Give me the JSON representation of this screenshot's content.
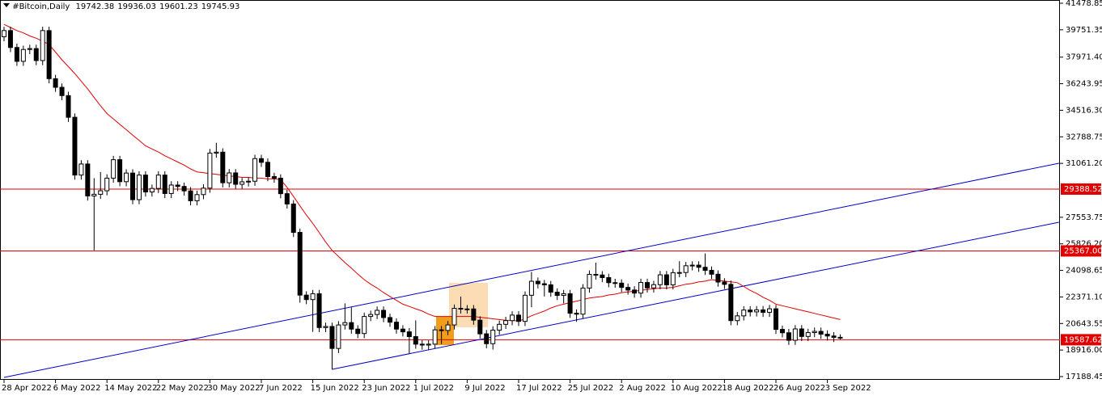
{
  "chart_data": {
    "type": "candlestick",
    "title": "#Bitcoin,Daily",
    "header_values": [
      19742.38,
      19936.03,
      19601.23,
      19745.93
    ],
    "ylim": [
      17188.45,
      41478.85
    ],
    "yticks": [
      41478.85,
      39751.35,
      {
        "value": 37971.4,
        "label": "37971.40"
      },
      36243.95,
      {
        "value": 34516.3,
        "label": "34516.30"
      },
      32788.75,
      {
        "value": 31061.2,
        "label": "31061.20"
      },
      27553.75,
      {
        "value": 25826.2,
        "label": "25826.20"
      },
      24098.65,
      {
        "value": 22371.1,
        "label": "22371.10"
      },
      20643.55,
      {
        "value": 18916,
        "label": "18916.00"
      },
      17188.45
    ],
    "xticks": [
      {
        "value": "2022-04-28",
        "label": "28 Apr 2022"
      },
      {
        "value": "2022-05-06",
        "label": "6 May 2022"
      },
      {
        "value": "2022-05-14",
        "label": "14 May 2022"
      },
      {
        "value": "2022-05-22",
        "label": "22 May 2022"
      },
      {
        "value": "2022-05-30",
        "label": "30 May 2022"
      },
      {
        "value": "2022-06-07",
        "label": "7 Jun 2022"
      },
      {
        "value": "2022-06-15",
        "label": "15 Jun 2022"
      },
      {
        "value": "2022-06-23",
        "label": "23 Jun 2022"
      },
      {
        "value": "2022-07-01",
        "label": "1 Jul 2022"
      },
      {
        "value": "2022-07-09",
        "label": "9 Jul 2022"
      },
      {
        "value": "2022-07-17",
        "label": "17 Jul 2022"
      },
      {
        "value": "2022-07-25",
        "label": "25 Jul 2022"
      },
      {
        "value": "2022-08-02",
        "label": "2 Aug 2022"
      },
      {
        "value": "2022-08-10",
        "label": "10 Aug 2022"
      },
      {
        "value": "2022-08-18",
        "label": "18 Aug 2022"
      },
      {
        "value": "2022-08-26",
        "label": "26 Aug 2022"
      },
      {
        "value": "2022-09-03",
        "label": "3 Sep 2022"
      }
    ],
    "x": [
      "2022-04-28",
      "2022-04-29",
      "2022-04-30",
      "2022-05-01",
      "2022-05-02",
      "2022-05-03",
      "2022-05-04",
      "2022-05-05",
      "2022-05-06",
      "2022-05-07",
      "2022-05-08",
      "2022-05-09",
      "2022-05-10",
      "2022-05-11",
      "2022-05-12",
      "2022-05-13",
      "2022-05-14",
      "2022-05-15",
      "2022-05-16",
      "2022-05-17",
      "2022-05-18",
      "2022-05-19",
      "2022-05-20",
      "2022-05-21",
      "2022-05-22",
      "2022-05-23",
      "2022-05-24",
      "2022-05-25",
      "2022-05-26",
      "2022-05-27",
      "2022-05-28",
      "2022-05-29",
      "2022-05-30",
      "2022-05-31",
      "2022-06-01",
      "2022-06-02",
      "2022-06-03",
      "2022-06-04",
      "2022-06-05",
      "2022-06-06",
      "2022-06-07",
      "2022-06-08",
      "2022-06-09",
      "2022-06-10",
      "2022-06-11",
      "2022-06-12",
      "2022-06-13",
      "2022-06-14",
      "2022-06-15",
      "2022-06-16",
      "2022-06-17",
      "2022-06-18",
      "2022-06-19",
      "2022-06-20",
      "2022-06-21",
      "2022-06-22",
      "2022-06-23",
      "2022-06-24",
      "2022-06-25",
      "2022-06-26",
      "2022-06-27",
      "2022-06-28",
      "2022-06-29",
      "2022-06-30",
      "2022-07-01",
      "2022-07-02",
      "2022-07-03",
      "2022-07-04",
      "2022-07-05",
      "2022-07-06",
      "2022-07-07",
      "2022-07-08",
      "2022-07-09",
      "2022-07-10",
      "2022-07-11",
      "2022-07-12",
      "2022-07-13",
      "2022-07-14",
      "2022-07-15",
      "2022-07-16",
      "2022-07-17",
      "2022-07-18",
      "2022-07-19",
      "2022-07-20",
      "2022-07-21",
      "2022-07-22",
      "2022-07-23",
      "2022-07-24",
      "2022-07-25",
      "2022-07-26",
      "2022-07-27",
      "2022-07-28",
      "2022-07-29",
      "2022-07-30",
      "2022-07-31",
      "2022-08-01",
      "2022-08-02",
      "2022-08-03",
      "2022-08-04",
      "2022-08-05",
      "2022-08-06",
      "2022-08-07",
      "2022-08-08",
      "2022-08-09",
      "2022-08-10",
      "2022-08-11",
      "2022-08-12",
      "2022-08-13",
      "2022-08-14",
      "2022-08-15",
      "2022-08-16",
      "2022-08-17",
      "2022-08-18",
      "2022-08-19",
      "2022-08-20",
      "2022-08-21",
      "2022-08-22",
      "2022-08-23",
      "2022-08-24",
      "2022-08-25",
      "2022-08-26",
      "2022-08-27",
      "2022-08-28",
      "2022-08-29",
      "2022-08-30",
      "2022-08-31",
      "2022-09-01",
      "2022-09-02",
      "2022-09-03",
      "2022-09-04",
      "2022-09-05"
    ],
    "open": [
      39300,
      39700,
      38600,
      37700,
      38470,
      38530,
      37750,
      39700,
      36570,
      36010,
      35470,
      34060,
      30300,
      31020,
      28940,
      29050,
      29280,
      30100,
      31300,
      29870,
      30430,
      28700,
      30300,
      29200,
      29430,
      30300,
      29100,
      29650,
      29560,
      29270,
      28630,
      29030,
      29450,
      31730,
      31790,
      29800,
      30440,
      29700,
      29860,
      29900,
      31370,
      31130,
      30200,
      30100,
      29090,
      28420,
      26570,
      22490,
      22200,
      22580,
      20380,
      20450,
      19020,
      20550,
      20700,
      20280,
      19990,
      21100,
      21230,
      21500,
      21030,
      20730,
      20280,
      20100,
      19790,
      19300,
      19240,
      19300,
      20230,
      20190,
      20550,
      21630,
      21590,
      21590,
      20860,
      19970,
      19330,
      20210,
      20590,
      20830,
      21190,
      20780,
      22480,
      23390,
      23230,
      23160,
      22680,
      22470,
      22580,
      21310,
      21250,
      22950,
      23840,
      23800,
      23630,
      23300,
      23270,
      22990,
      22820,
      22620,
      23310,
      22960,
      23170,
      23810,
      23160,
      23950,
      23960,
      24400,
      24440,
      24300,
      24100,
      23850,
      23340,
      23190,
      20830,
      21140,
      21520,
      21400,
      21530,
      21370,
      21600,
      20260,
      20040,
      19550,
      20290,
      19800,
      20050,
      20130,
      19950,
      19830,
      19742.38
    ],
    "high": [
      39950,
      39950,
      38850,
      38720,
      38780,
      38780,
      39950,
      39950,
      36820,
      36260,
      35720,
      34310,
      31270,
      31270,
      30100,
      30500,
      30350,
      31550,
      31550,
      30680,
      30680,
      30550,
      30550,
      29680,
      30550,
      30550,
      29900,
      29900,
      29810,
      29520,
      29280,
      29700,
      32000,
      32400,
      32040,
      30690,
      30690,
      30110,
      30150,
      31620,
      31620,
      31380,
      30450,
      30350,
      29340,
      28670,
      26820,
      22740,
      22830,
      22830,
      20700,
      20700,
      20800,
      21950,
      21700,
      20530,
      21350,
      21480,
      21750,
      21750,
      21280,
      20980,
      20530,
      20350,
      20850,
      19550,
      19550,
      20480,
      20480,
      20800,
      21880,
      22400,
      21840,
      21840,
      21110,
      20220,
      20460,
      20840,
      21080,
      21440,
      21440,
      22730,
      24000,
      23640,
      23480,
      23410,
      22930,
      22830,
      22830,
      21560,
      23200,
      24100,
      24600,
      24050,
      23880,
      23550,
      23520,
      23240,
      23070,
      23560,
      23560,
      23420,
      24060,
      24060,
      24200,
      24700,
      24650,
      24690,
      24690,
      25200,
      24350,
      24100,
      23590,
      23440,
      21390,
      21770,
      21770,
      21780,
      21780,
      21850,
      21850,
      20510,
      20290,
      20540,
      20540,
      20300,
      20380,
      20380,
      20200,
      20080,
      19936.03
    ],
    "low": [
      39000,
      38300,
      37400,
      37400,
      38170,
      37450,
      37450,
      36270,
      35710,
      35170,
      33760,
      30000,
      30000,
      28640,
      25400,
      28750,
      28980,
      29800,
      29570,
      29570,
      28400,
      28400,
      28900,
      28900,
      29130,
      28800,
      28800,
      29260,
      28970,
      28330,
      28330,
      28730,
      29150,
      31430,
      29500,
      29500,
      29400,
      29400,
      29560,
      29600,
      30830,
      29900,
      29800,
      28790,
      28120,
      26270,
      22000,
      21900,
      20100,
      20080,
      20080,
      17650,
      18720,
      20250,
      19980,
      19690,
      19690,
      20800,
      20930,
      20730,
      20430,
      19980,
      19800,
      18700,
      19000,
      18940,
      18940,
      19000,
      19300,
      19890,
      20250,
      21290,
      21290,
      20560,
      19670,
      19030,
      18950,
      19910,
      20290,
      20530,
      20480,
      20480,
      21700,
      22930,
      22400,
      22380,
      22170,
      21950,
      21010,
      20750,
      20950,
      22650,
      23500,
      23330,
      23000,
      22970,
      22690,
      22520,
      22320,
      22320,
      22660,
      22660,
      22870,
      22860,
      22860,
      23650,
      23660,
      24100,
      24000,
      23800,
      23550,
      23040,
      22890,
      20530,
      20530,
      20840,
      21100,
      21100,
      21070,
      21070,
      19960,
      19740,
      19250,
      19250,
      19500,
      19500,
      19750,
      19650,
      19530,
      19442,
      19601.23
    ],
    "close": [
      39700,
      38600,
      37700,
      38470,
      38530,
      37750,
      39700,
      36570,
      36010,
      35470,
      34060,
      30300,
      31020,
      28940,
      29050,
      29280,
      30100,
      31300,
      29870,
      30430,
      28700,
      30300,
      29200,
      29430,
      30300,
      29100,
      29650,
      29560,
      29270,
      28630,
      29030,
      29450,
      31730,
      31790,
      29800,
      30440,
      29700,
      29860,
      29900,
      31370,
      31130,
      30200,
      30100,
      29090,
      28420,
      26570,
      22490,
      22200,
      22580,
      20380,
      20450,
      19020,
      20550,
      20700,
      20280,
      19990,
      21100,
      21230,
      21500,
      21030,
      20730,
      20280,
      20100,
      19790,
      19300,
      19240,
      19300,
      20230,
      20190,
      20550,
      21630,
      21590,
      21590,
      20860,
      19970,
      19330,
      20210,
      20590,
      20830,
      21190,
      20780,
      22480,
      23390,
      23230,
      23160,
      22680,
      22470,
      22580,
      21310,
      21250,
      22950,
      23840,
      23800,
      23630,
      23300,
      23270,
      22990,
      22820,
      22620,
      23310,
      22960,
      23170,
      23810,
      23160,
      23950,
      23960,
      24400,
      24440,
      24300,
      24100,
      23850,
      23340,
      23190,
      20830,
      21140,
      21520,
      21400,
      21530,
      21370,
      21600,
      20260,
      20040,
      19550,
      20290,
      19800,
      20050,
      20130,
      19950,
      19830,
      19742.38,
      19745.93
    ],
    "ma": {
      "color": "#e00000",
      "values": [
        40100,
        39900,
        39700,
        39550,
        39350,
        39200,
        39000,
        38800,
        38300,
        37800,
        37350,
        36900,
        36400,
        35900,
        35350,
        34800,
        34300,
        33950,
        33600,
        33250,
        32900,
        32550,
        32200,
        32000,
        31800,
        31550,
        31350,
        31150,
        30950,
        30700,
        30500,
        30450,
        30400,
        30350,
        30300,
        30250,
        30200,
        30150,
        30150,
        30100,
        30100,
        30050,
        30050,
        30000,
        29500,
        28900,
        28300,
        27700,
        27150,
        26550,
        25950,
        25400,
        25000,
        24600,
        24250,
        23850,
        23500,
        23200,
        22950,
        22650,
        22400,
        22150,
        21900,
        21750,
        21600,
        21450,
        21250,
        21100,
        21100,
        21100,
        21100,
        21100,
        21100,
        21100,
        21050,
        21000,
        20950,
        20900,
        20850,
        20850,
        20800,
        20950,
        21150,
        21300,
        21450,
        21650,
        21800,
        21900,
        22000,
        22100,
        22200,
        22300,
        22350,
        22400,
        22500,
        22550,
        22650,
        22700,
        22750,
        22800,
        22850,
        22900,
        22950,
        22950,
        23000,
        23100,
        23200,
        23250,
        23350,
        23400,
        23500,
        23450,
        23400,
        23350,
        23300,
        23050,
        22800,
        22600,
        22350,
        22150,
        21900,
        21800,
        21700,
        21600,
        21500,
        21400,
        21300,
        21200,
        21100,
        21000,
        20900
      ]
    },
    "trendlines": [
      {
        "color": "#0000c8",
        "x": [
          "2022-04-28",
          "2022-10-09"
        ],
        "y": [
          17134,
          31068
        ]
      },
      {
        "color": "#0000c8",
        "x": [
          "2022-06-18",
          "2022-10-09"
        ],
        "y": [
          17660,
          27230
        ]
      }
    ],
    "hlines": {
      "color": "#e00000",
      "values": [
        29388.52,
        {
          "value": 25367,
          "label": "25367.00"
        },
        19587.62
      ]
    }
  }
}
